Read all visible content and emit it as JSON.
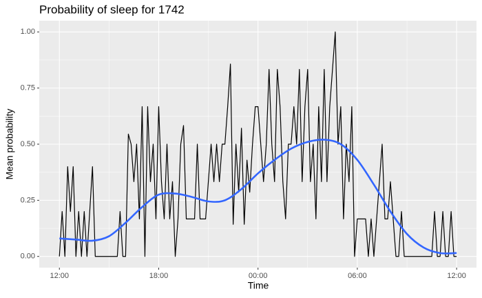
{
  "chart_data": {
    "type": "line",
    "title": "Probability of sleep for 1742",
    "x_label": "Time",
    "y_label": "Mean probability",
    "xlim": [
      -73,
      1512
    ],
    "ylim": [
      -0.05,
      1.05
    ],
    "xticks": [
      {
        "value": 0,
        "label": "12:00"
      },
      {
        "value": 360,
        "label": "18:00"
      },
      {
        "value": 720,
        "label": "00:00"
      },
      {
        "value": 1080,
        "label": "06:00"
      },
      {
        "value": 1440,
        "label": "12:00"
      }
    ],
    "yticks": [
      {
        "value": 0,
        "label": "0.00"
      },
      {
        "value": 0.25,
        "label": "0.25"
      },
      {
        "value": 0.5,
        "label": "0.50"
      },
      {
        "value": 0.75,
        "label": "0.75"
      },
      {
        "value": 1,
        "label": "1.00"
      }
    ],
    "grid": true,
    "series": [
      {
        "color": "#000000",
        "smooth": false,
        "x": [
          0,
          10,
          20,
          30,
          40,
          50,
          60,
          70,
          80,
          90,
          100,
          110,
          120,
          130,
          140,
          150,
          160,
          170,
          180,
          190,
          200,
          210,
          220,
          230,
          240,
          250,
          260,
          270,
          280,
          290,
          300,
          310,
          320,
          330,
          340,
          350,
          360,
          370,
          380,
          390,
          400,
          410,
          420,
          430,
          440,
          450,
          460,
          470,
          480,
          490,
          500,
          510,
          520,
          530,
          540,
          550,
          560,
          570,
          580,
          590,
          600,
          610,
          620,
          630,
          640,
          650,
          660,
          670,
          680,
          690,
          700,
          710,
          720,
          730,
          740,
          750,
          760,
          770,
          780,
          790,
          800,
          810,
          820,
          830,
          840,
          850,
          860,
          870,
          880,
          890,
          900,
          910,
          920,
          930,
          940,
          950,
          960,
          970,
          980,
          990,
          1000,
          1010,
          1020,
          1030,
          1040,
          1050,
          1060,
          1070,
          1080,
          1090,
          1100,
          1110,
          1120,
          1130,
          1140,
          1150,
          1160,
          1170,
          1180,
          1190,
          1200,
          1210,
          1220,
          1230,
          1240,
          1250,
          1260,
          1270,
          1280,
          1290,
          1300,
          1310,
          1320,
          1330,
          1340,
          1350,
          1360,
          1370,
          1380,
          1390,
          1400,
          1410,
          1420,
          1430,
          1440
        ],
        "values": [
          0,
          0.2,
          0,
          0.4,
          0.2,
          0.4,
          0,
          0.2,
          0,
          0.2,
          0,
          0.2,
          0.4,
          0,
          0,
          0,
          0,
          0,
          0,
          0,
          0,
          0,
          0.2,
          0,
          0,
          0.545,
          0.5,
          0.333,
          0.5,
          0.167,
          0.667,
          0,
          0.667,
          0.333,
          0.5,
          0.167,
          0.667,
          0.333,
          0.167,
          0.5,
          0.167,
          0.333,
          0,
          0.167,
          0.5,
          0.583,
          0.167,
          0.167,
          0.167,
          0.167,
          0.5,
          0.167,
          0.167,
          0.167,
          0.333,
          0.5,
          0.333,
          0.5,
          0.333,
          0.5,
          0.5,
          0.667,
          0.857,
          0.143,
          0.5,
          0.286,
          0.571,
          0.143,
          0.429,
          0.286,
          0.5,
          0.667,
          0.667,
          0.5,
          0.333,
          0.5,
          0.833,
          0.5,
          0.333,
          0.833,
          0.667,
          0.333,
          0.167,
          0.5,
          0.5,
          0.667,
          0.5,
          0.833,
          0.333,
          0.667,
          0.833,
          0.333,
          0.5,
          0.167,
          0.667,
          0.333,
          0.833,
          0.333,
          0.667,
          0.833,
          1.0,
          0.5,
          0.667,
          0.167,
          0.5,
          0.333,
          0.667,
          0,
          0.167,
          0.167,
          0.167,
          0.167,
          0,
          0.167,
          0,
          0.167,
          0.333,
          0.5,
          0.167,
          0.167,
          0.333,
          0.167,
          0,
          0,
          0.2,
          0,
          0,
          0,
          0,
          0,
          0,
          0,
          0,
          0,
          0,
          0,
          0.2,
          0,
          0,
          0.2,
          0,
          0,
          0.2,
          0,
          0
        ]
      },
      {
        "color": "#3366ff",
        "smooth": true,
        "x": [
          0,
          60,
          120,
          180,
          240,
          300,
          360,
          420,
          480,
          540,
          600,
          660,
          720,
          780,
          840,
          900,
          960,
          1020,
          1080,
          1140,
          1200,
          1260,
          1320,
          1380,
          1440
        ],
        "values": [
          0.08,
          0.075,
          0.07,
          0.09,
          0.15,
          0.22,
          0.275,
          0.28,
          0.265,
          0.245,
          0.25,
          0.3,
          0.37,
          0.43,
          0.48,
          0.51,
          0.52,
          0.5,
          0.43,
          0.32,
          0.2,
          0.1,
          0.04,
          0.015,
          0.015
        ]
      }
    ]
  }
}
